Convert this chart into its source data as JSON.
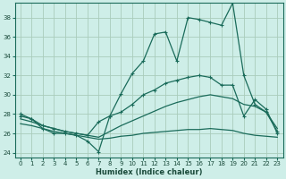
{
  "xlabel": "Humidex (Indice chaleur)",
  "background_color": "#ceeee8",
  "grid_color": "#aaccbb",
  "line_color": "#1a6b5a",
  "x_values": [
    0,
    1,
    2,
    3,
    4,
    5,
    6,
    7,
    8,
    9,
    10,
    11,
    12,
    13,
    14,
    15,
    16,
    17,
    18,
    19,
    20,
    21,
    22,
    23
  ],
  "series1": [
    28.0,
    27.5,
    26.5,
    26.0,
    26.0,
    25.8,
    25.2,
    24.1,
    27.8,
    30.1,
    32.2,
    33.5,
    36.3,
    36.5,
    33.5,
    38.0,
    37.8,
    37.5,
    37.2,
    39.5,
    32.0,
    29.0,
    28.2,
    26.2
  ],
  "series2": [
    27.8,
    27.5,
    26.8,
    26.5,
    26.2,
    26.0,
    25.8,
    27.2,
    27.8,
    28.2,
    29.0,
    30.0,
    30.5,
    31.2,
    31.5,
    31.8,
    32.0,
    31.8,
    31.0,
    31.0,
    27.8,
    29.5,
    28.5,
    26.0
  ],
  "series3": [
    27.5,
    27.2,
    26.8,
    26.5,
    26.2,
    26.0,
    25.8,
    25.6,
    26.2,
    26.8,
    27.3,
    27.8,
    28.3,
    28.8,
    29.2,
    29.5,
    29.8,
    30.0,
    29.8,
    29.6,
    29.0,
    28.8,
    28.2,
    26.5
  ],
  "series4": [
    27.0,
    26.8,
    26.5,
    26.2,
    26.0,
    25.8,
    25.6,
    25.4,
    25.5,
    25.7,
    25.8,
    26.0,
    26.1,
    26.2,
    26.3,
    26.4,
    26.4,
    26.5,
    26.4,
    26.3,
    26.0,
    25.8,
    25.7,
    25.6
  ],
  "ylim": [
    23.5,
    39.5
  ],
  "yticks": [
    24,
    26,
    28,
    30,
    32,
    34,
    36,
    38
  ],
  "xticks": [
    0,
    1,
    2,
    3,
    4,
    5,
    6,
    7,
    8,
    9,
    10,
    11,
    12,
    13,
    14,
    15,
    16,
    17,
    18,
    19,
    20,
    21,
    22,
    23
  ]
}
